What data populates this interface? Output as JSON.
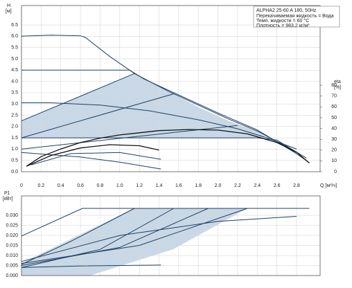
{
  "chart_data": [
    {
      "type": "line",
      "title": "ALPHA2 25-60 A 180, 50Hz",
      "annotations": [
        "Перекачиваемая жидкость = Вода",
        "Темп. жидкости = 60 °C",
        "Плотность = 983.2 кг/м³"
      ],
      "ylabel": "H",
      "yunit": "[м]",
      "y2label": "eta",
      "y2unit": "[%]",
      "xlabel": "Q [м³/ч]",
      "grid": true,
      "xlim": [
        0,
        3.04
      ],
      "ylim": [
        0,
        7.36
      ],
      "y2lim": [
        0,
        153.8
      ],
      "xticks": [
        0,
        0.2,
        0.4,
        0.6,
        0.8,
        {
          "value": 1,
          "label": "1.0"
        },
        1.2,
        1.4,
        1.6,
        1.8,
        {
          "value": 2,
          "label": "2.0"
        },
        2.2,
        2.4,
        2.6,
        2.8
      ],
      "yticks": [
        {
          "value": 0,
          "label": "0.0"
        },
        0.5,
        {
          "value": 1,
          "label": "1.0"
        },
        1.5,
        {
          "value": 2,
          "label": "2.0"
        },
        2.5,
        {
          "value": 3,
          "label": "3.0"
        },
        3.5,
        {
          "value": 4,
          "label": "4.0"
        },
        4.5,
        {
          "value": 5,
          "label": "5.0"
        },
        5.5,
        {
          "value": 6,
          "label": "6.0"
        },
        6.5
      ],
      "y2ticks": [
        0,
        10,
        20,
        30,
        40,
        50,
        60,
        70,
        80
      ],
      "series": [
        {
          "color": "#1d3f66",
          "x": [
            0,
            0.3,
            0.6,
            0.65,
            0.9,
            1.15,
            1.5,
            1.8,
            2.1,
            2.4,
            2.7,
            2.93
          ],
          "values": [
            6.0,
            6.05,
            6.02,
            5.95,
            5.1,
            4.35,
            3.55,
            2.95,
            2.35,
            1.8,
            1.1,
            0.4
          ]
        },
        {
          "color": "#1d3f66",
          "x": [
            0,
            0.5,
            1.1,
            1.25,
            1.6,
            2.0,
            2.4,
            2.8
          ],
          "values": [
            4.5,
            4.5,
            4.5,
            4.1,
            3.4,
            2.6,
            1.85,
            0.8
          ]
        },
        {
          "color": "#1d3f66",
          "x": [
            0,
            0.3,
            0.8,
            1.3,
            1.8,
            2.2,
            2.5,
            2.8
          ],
          "values": [
            3.05,
            3.05,
            2.95,
            2.7,
            2.3,
            1.9,
            1.5,
            1.0
          ]
        },
        {
          "color": "#1d3f66",
          "x": [
            0,
            1.0,
            2.0,
            2.4,
            2.6,
            2.9
          ],
          "values": [
            1.5,
            1.5,
            1.5,
            1.5,
            1.4,
            0.6
          ]
        },
        {
          "color": "#1d3f66",
          "x": [
            0,
            1.15
          ],
          "values": [
            2.25,
            4.35
          ]
        },
        {
          "color": "#1d3f66",
          "x": [
            0,
            1.55
          ],
          "values": [
            1.5,
            3.45
          ]
        },
        {
          "color": "#1d3f66",
          "x": [
            0,
            2.2
          ],
          "values": [
            1.0,
            2.05
          ]
        },
        {
          "color": "#1d3f66",
          "x": [
            0,
            0.6,
            1.0,
            1.42
          ],
          "values": [
            0.85,
            0.65,
            0.42,
            0.12
          ]
        },
        {
          "color": "#1d3f66",
          "x": [
            0.1,
            0.5,
            1.0,
            1.42
          ],
          "values": [
            0.3,
            0.8,
            0.85,
            0.55
          ]
        },
        {
          "color": "#111111",
          "axis": "y2",
          "x": [
            0.05,
            0.2,
            0.4,
            0.6,
            0.8,
            1.0,
            1.2,
            1.4,
            1.7,
            2.0,
            2.3,
            2.6,
            2.8,
            2.93
          ],
          "values": [
            5,
            14,
            21,
            27,
            31,
            34,
            36,
            38,
            39,
            38.5,
            35,
            27,
            18,
            8
          ]
        },
        {
          "color": "#111111",
          "axis": "y2",
          "x": [
            0.05,
            0.3,
            0.6,
            0.9,
            1.2,
            1.4
          ],
          "values": [
            5,
            15,
            22,
            25,
            24,
            20
          ]
        }
      ]
    },
    {
      "type": "line",
      "ylabel": "P1",
      "yunit": "[кВт]",
      "grid": true,
      "xlim": [
        0,
        3.04
      ],
      "ylim": [
        0,
        0.0397
      ],
      "xticks": [
        0,
        0.2,
        0.4,
        0.6,
        0.8,
        1,
        1.2,
        1.4,
        1.6,
        1.8,
        2,
        2.2,
        2.4,
        2.6,
        2.8
      ],
      "yticks": [
        {
          "value": 0,
          "label": "0.000"
        },
        0.005,
        {
          "value": 0.01,
          "label": "0.010"
        },
        0.015,
        {
          "value": 0.02,
          "label": "0.020"
        },
        0.025,
        {
          "value": 0.03,
          "label": "0.030"
        }
      ],
      "series": [
        {
          "color": "#1d3f66",
          "x": [
            0,
            0.62,
            2.93
          ],
          "values": [
            0.0197,
            0.0335,
            0.0335
          ]
        },
        {
          "color": "#1d3f66",
          "x": [
            0,
            0.5,
            1.15
          ],
          "values": [
            0.0055,
            0.017,
            0.0335
          ]
        },
        {
          "color": "#1d3f66",
          "x": [
            0,
            0.8,
            1.55
          ],
          "values": [
            0.004,
            0.013,
            0.0335
          ]
        },
        {
          "color": "#1d3f66",
          "x": [
            0,
            1.0,
            1.9
          ],
          "values": [
            0.005,
            0.014,
            0.0335
          ]
        },
        {
          "color": "#1d3f66",
          "x": [
            0,
            1.2,
            2.3
          ],
          "values": [
            0.006,
            0.015,
            0.0335
          ]
        },
        {
          "color": "#1d3f66",
          "x": [
            0,
            1.0,
            2.0,
            2.8
          ],
          "values": [
            0.007,
            0.02,
            0.027,
            0.0295
          ]
        },
        {
          "color": "#1d3f66",
          "x": [
            0,
            0.6,
            1.42
          ],
          "values": [
            0.004,
            0.0048,
            0.0052
          ]
        }
      ]
    }
  ]
}
